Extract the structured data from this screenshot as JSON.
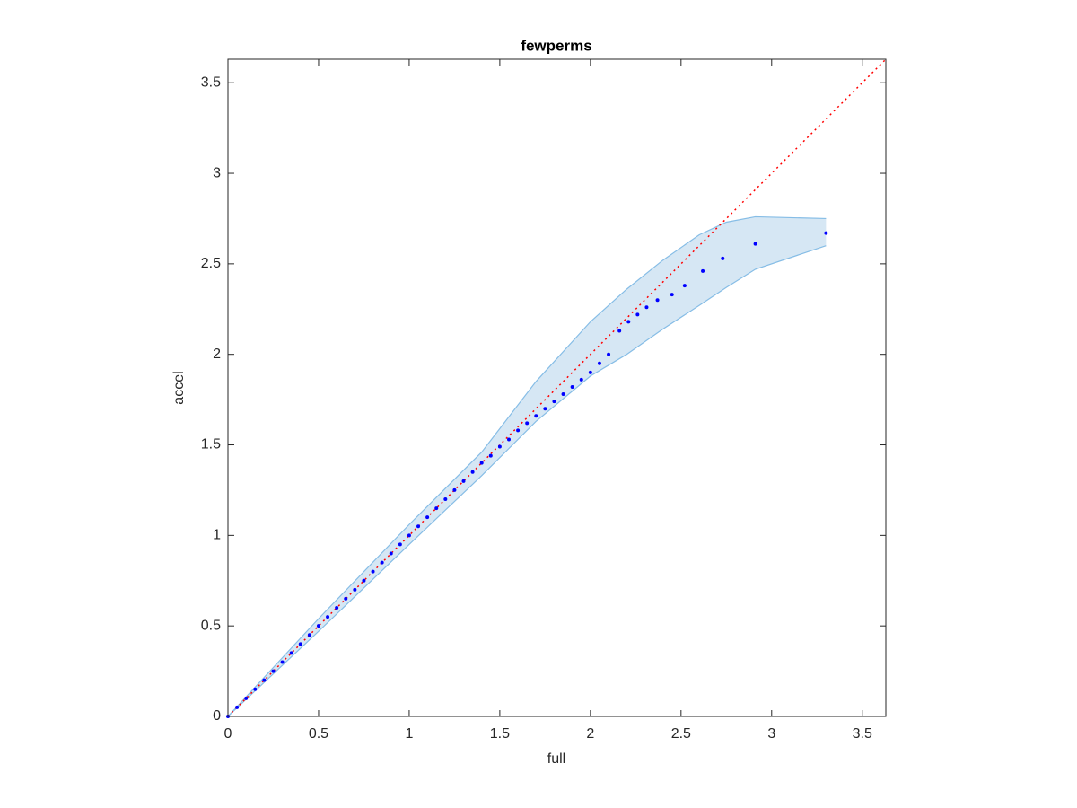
{
  "chart_data": {
    "type": "scatter",
    "title": "fewperms",
    "x_label": "full",
    "y_label": "accel",
    "xlim": [
      0,
      3.63
    ],
    "ylim": [
      0,
      3.63
    ],
    "xticks": [
      0,
      0.5,
      1,
      1.5,
      2,
      2.5,
      3,
      3.5
    ],
    "yticks": [
      0,
      0.5,
      1,
      1.5,
      2,
      2.5,
      3,
      3.5
    ],
    "series": [
      {
        "name": "accel",
        "color": "#0000ff",
        "x": [
          0,
          0.05,
          0.1,
          0.15,
          0.2,
          0.25,
          0.3,
          0.35,
          0.4,
          0.45,
          0.5,
          0.55,
          0.6,
          0.65,
          0.7,
          0.75,
          0.8,
          0.85,
          0.9,
          0.95,
          1.0,
          1.05,
          1.1,
          1.15,
          1.2,
          1.25,
          1.3,
          1.35,
          1.4,
          1.45,
          1.5,
          1.55,
          1.6,
          1.65,
          1.7,
          1.75,
          1.8,
          1.85,
          1.9,
          1.95,
          2.0,
          2.05,
          2.1,
          2.16,
          2.21,
          2.26,
          2.31,
          2.37,
          2.45,
          2.52,
          2.62,
          2.73,
          2.91,
          3.3
        ],
        "values": [
          0,
          0.05,
          0.1,
          0.15,
          0.2,
          0.25,
          0.3,
          0.35,
          0.4,
          0.45,
          0.5,
          0.55,
          0.6,
          0.65,
          0.7,
          0.75,
          0.8,
          0.85,
          0.9,
          0.95,
          1.0,
          1.05,
          1.1,
          1.15,
          1.2,
          1.25,
          1.3,
          1.35,
          1.4,
          1.44,
          1.49,
          1.53,
          1.58,
          1.62,
          1.66,
          1.7,
          1.74,
          1.78,
          1.82,
          1.86,
          1.9,
          1.95,
          2.0,
          2.13,
          2.18,
          2.22,
          2.26,
          2.3,
          2.33,
          2.38,
          2.46,
          2.53,
          2.61,
          2.67
        ]
      }
    ],
    "band": {
      "color": "#d6e7f4",
      "edge_color": "#86bde6",
      "x": [
        0,
        0.5,
        1,
        1.4,
        1.7,
        2.0,
        2.2,
        2.4,
        2.6,
        2.75,
        2.91,
        3.3
      ],
      "upper": [
        0,
        0.54,
        1.06,
        1.46,
        1.85,
        2.18,
        2.36,
        2.52,
        2.66,
        2.73,
        2.76,
        2.75
      ],
      "lower": [
        0,
        0.47,
        0.95,
        1.33,
        1.63,
        1.88,
        2.0,
        2.14,
        2.27,
        2.37,
        2.47,
        2.6
      ]
    },
    "reference_line": {
      "color": "#ff0000",
      "x": [
        0,
        3.63
      ],
      "values": [
        0,
        3.63
      ]
    }
  }
}
